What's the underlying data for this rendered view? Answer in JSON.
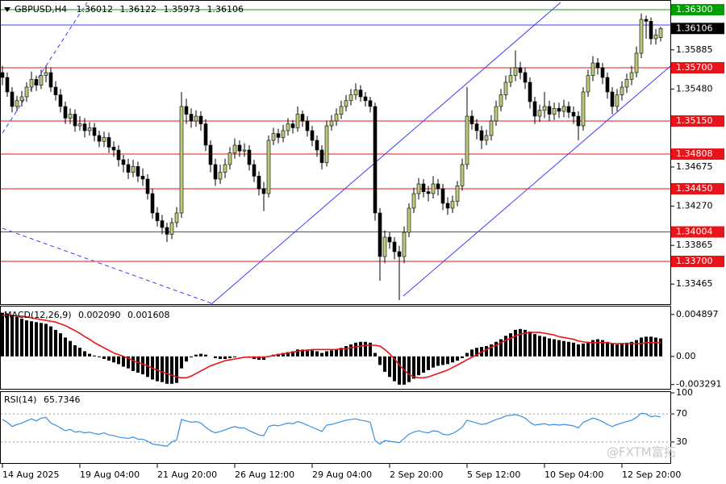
{
  "chart_data": [
    {
      "type": "candlestick",
      "title": "GBPUSD,H4",
      "header_values": [
        1.36012,
        1.36122,
        1.35973,
        1.36106
      ],
      "categories": [
        "14 Aug 2025",
        null,
        null,
        null,
        null,
        null,
        null,
        null,
        null,
        null,
        null,
        null,
        null,
        null,
        null,
        null,
        "19 Aug 04:00",
        null,
        null,
        null,
        null,
        null,
        null,
        null,
        null,
        null,
        null,
        null,
        null,
        null,
        null,
        null,
        "21 Aug 20:00",
        null,
        null,
        null,
        null,
        null,
        null,
        null,
        null,
        null,
        null,
        null,
        null,
        null,
        null,
        null,
        "26 Aug 12:00",
        null,
        null,
        null,
        null,
        null,
        null,
        null,
        null,
        null,
        null,
        null,
        null,
        null,
        null,
        null,
        "29 Aug 04:00",
        null,
        null,
        null,
        null,
        null,
        null,
        null,
        null,
        null,
        null,
        null,
        null,
        null,
        null,
        null,
        "2 Sep 20:00",
        null,
        null,
        null,
        null,
        null,
        null,
        null,
        null,
        null,
        null,
        null,
        null,
        null,
        null,
        null,
        "5 Sep 12:00",
        null,
        null,
        null,
        null,
        null,
        null,
        null,
        null,
        null,
        null,
        null,
        null,
        null,
        null,
        null,
        "10 Sep 04:00",
        null,
        null,
        null,
        null,
        null,
        null,
        null,
        null,
        null,
        null,
        null,
        null,
        null,
        null,
        null,
        "12 Sep 20:00",
        null,
        null,
        null,
        null,
        null,
        null,
        null,
        null
      ],
      "open": [
        1.3565,
        1.356,
        1.3545,
        1.353,
        1.3536,
        1.354,
        1.355,
        1.3558,
        1.3552,
        1.3562,
        1.3565,
        1.355,
        1.3542,
        1.353,
        1.3518,
        1.3522,
        1.351,
        1.3512,
        1.3505,
        1.3508,
        1.35,
        1.3494,
        1.3498,
        1.3488,
        1.3485,
        1.3475,
        1.347,
        1.3462,
        1.3468,
        1.3458,
        1.3455,
        1.344,
        1.342,
        1.3412,
        1.3405,
        1.3398,
        1.341,
        1.342,
        1.353,
        1.3522,
        1.3515,
        1.352,
        1.3512,
        1.349,
        1.347,
        1.3455,
        1.3462,
        1.347,
        1.3482,
        1.349,
        1.3484,
        1.3485,
        1.347,
        1.3458,
        1.3445,
        1.344,
        1.3495,
        1.3502,
        1.3498,
        1.3505,
        1.3512,
        1.3508,
        1.3522,
        1.3515,
        1.3505,
        1.3495,
        1.3485,
        1.3472,
        1.351,
        1.3515,
        1.3522,
        1.353,
        1.3536,
        1.3542,
        1.3547,
        1.354,
        1.3536,
        1.353,
        1.342,
        1.3375,
        1.3395,
        1.339,
        1.338,
        1.3375,
        1.34,
        1.3425,
        1.344,
        1.345,
        1.3442,
        1.344,
        1.345,
        1.3445,
        1.343,
        1.3425,
        1.3432,
        1.3448,
        1.347,
        1.352,
        1.3512,
        1.3505,
        1.3495,
        1.35,
        1.3515,
        1.353,
        1.3542,
        1.3555,
        1.3562,
        1.357,
        1.3565,
        1.3555,
        1.3535,
        1.352,
        1.3526,
        1.353,
        1.3522,
        1.3528,
        1.3525,
        1.353,
        1.3524,
        1.352,
        1.351,
        1.3545,
        1.3562,
        1.3575,
        1.357,
        1.356,
        1.3545,
        1.353,
        1.3542,
        1.355,
        1.3558,
        1.3565,
        1.3585,
        1.362,
        1.3618,
        1.36,
        1.36012
      ],
      "high": [
        1.3572,
        1.3565,
        1.355,
        1.3541,
        1.3546,
        1.3555,
        1.3566,
        1.3562,
        1.3568,
        1.3572,
        1.357,
        1.3556,
        1.3548,
        1.3535,
        1.3528,
        1.3527,
        1.352,
        1.3518,
        1.3514,
        1.3513,
        1.3505,
        1.3504,
        1.3503,
        1.3494,
        1.349,
        1.348,
        1.3476,
        1.3475,
        1.3473,
        1.3466,
        1.346,
        1.3445,
        1.3426,
        1.3418,
        1.341,
        1.3415,
        1.3426,
        1.3545,
        1.3538,
        1.3528,
        1.3526,
        1.3525,
        1.3517,
        1.3495,
        1.3476,
        1.347,
        1.3476,
        1.3488,
        1.3497,
        1.3495,
        1.3492,
        1.349,
        1.3475,
        1.3463,
        1.3452,
        1.35,
        1.3508,
        1.3507,
        1.3511,
        1.3518,
        1.3516,
        1.353,
        1.3526,
        1.352,
        1.351,
        1.35,
        1.349,
        1.3515,
        1.3521,
        1.3528,
        1.3536,
        1.3542,
        1.3548,
        1.3554,
        1.3552,
        1.3545,
        1.354,
        1.3534,
        1.3425,
        1.3402,
        1.34,
        1.3395,
        1.3386,
        1.3406,
        1.343,
        1.3446,
        1.3456,
        1.3455,
        1.3448,
        1.3458,
        1.3455,
        1.345,
        1.3436,
        1.3438,
        1.3453,
        1.3476,
        1.355,
        1.3526,
        1.3517,
        1.351,
        1.3506,
        1.3521,
        1.3536,
        1.3548,
        1.3562,
        1.357,
        1.3588,
        1.3576,
        1.357,
        1.356,
        1.354,
        1.3532,
        1.3545,
        1.3536,
        1.3534,
        1.3534,
        1.3537,
        1.3535,
        1.353,
        1.3525,
        1.355,
        1.3568,
        1.3582,
        1.358,
        1.3575,
        1.3565,
        1.355,
        1.3548,
        1.3556,
        1.3564,
        1.3572,
        1.3592,
        1.3626,
        1.3624,
        1.3622,
        1.361,
        1.36122
      ],
      "low": [
        1.3552,
        1.354,
        1.3524,
        1.3525,
        1.353,
        1.3535,
        1.3545,
        1.3546,
        1.3548,
        1.3555,
        1.3545,
        1.3536,
        1.3524,
        1.3512,
        1.3512,
        1.3504,
        1.3505,
        1.3498,
        1.35,
        1.3494,
        1.3488,
        1.3488,
        1.3482,
        1.3478,
        1.3468,
        1.3462,
        1.3455,
        1.3457,
        1.3452,
        1.3448,
        1.3434,
        1.3414,
        1.3406,
        1.3398,
        1.339,
        1.3393,
        1.3405,
        1.3415,
        1.3512,
        1.3508,
        1.3509,
        1.3505,
        1.3484,
        1.3462,
        1.3448,
        1.345,
        1.3456,
        1.3465,
        1.3476,
        1.3478,
        1.3478,
        1.3464,
        1.3452,
        1.3438,
        1.3422,
        1.3436,
        1.349,
        1.3492,
        1.3493,
        1.35,
        1.3502,
        1.3504,
        1.3509,
        1.3499,
        1.3489,
        1.3478,
        1.3465,
        1.3468,
        1.3505,
        1.351,
        1.3517,
        1.3525,
        1.3531,
        1.3537,
        1.3535,
        1.353,
        1.3524,
        1.3412,
        1.335,
        1.3368,
        1.3383,
        1.3372,
        1.333,
        1.3368,
        1.3395,
        1.342,
        1.3434,
        1.3436,
        1.3432,
        1.3435,
        1.3438,
        1.3423,
        1.3418,
        1.342,
        1.3427,
        1.3443,
        1.3465,
        1.3506,
        1.3496,
        1.3486,
        1.349,
        1.3495,
        1.351,
        1.3525,
        1.3537,
        1.355,
        1.3556,
        1.3558,
        1.3548,
        1.3528,
        1.3512,
        1.3514,
        1.3518,
        1.3515,
        1.3516,
        1.3518,
        1.3519,
        1.3518,
        1.3512,
        1.3495,
        1.3505,
        1.354,
        1.3556,
        1.3563,
        1.3553,
        1.3538,
        1.3522,
        1.3525,
        1.3536,
        1.3544,
        1.3552,
        1.356,
        1.358,
        1.36,
        1.3594,
        1.3594,
        1.35973
      ],
      "close": [
        1.356,
        1.3545,
        1.353,
        1.3536,
        1.354,
        1.355,
        1.3558,
        1.3552,
        1.3562,
        1.3565,
        1.355,
        1.3542,
        1.353,
        1.3518,
        1.3522,
        1.351,
        1.3512,
        1.3505,
        1.3508,
        1.35,
        1.3494,
        1.3498,
        1.3488,
        1.3485,
        1.3475,
        1.347,
        1.3462,
        1.3468,
        1.3458,
        1.3455,
        1.344,
        1.342,
        1.3412,
        1.3405,
        1.3398,
        1.341,
        1.342,
        1.353,
        1.3522,
        1.3515,
        1.352,
        1.3512,
        1.349,
        1.347,
        1.3455,
        1.3462,
        1.347,
        1.3482,
        1.349,
        1.3484,
        1.3485,
        1.347,
        1.3458,
        1.3445,
        1.344,
        1.3495,
        1.3502,
        1.3498,
        1.3505,
        1.3512,
        1.3508,
        1.3522,
        1.3515,
        1.3505,
        1.3495,
        1.3485,
        1.3472,
        1.351,
        1.3515,
        1.3522,
        1.353,
        1.3536,
        1.3542,
        1.3547,
        1.354,
        1.3536,
        1.353,
        1.342,
        1.3375,
        1.3395,
        1.339,
        1.338,
        1.3375,
        1.34,
        1.3425,
        1.344,
        1.345,
        1.3442,
        1.344,
        1.345,
        1.3445,
        1.343,
        1.3425,
        1.3432,
        1.3448,
        1.347,
        1.352,
        1.3512,
        1.3505,
        1.3495,
        1.35,
        1.3515,
        1.353,
        1.3542,
        1.3555,
        1.3562,
        1.357,
        1.3565,
        1.3555,
        1.3535,
        1.352,
        1.3526,
        1.353,
        1.3522,
        1.3528,
        1.3525,
        1.353,
        1.3524,
        1.352,
        1.351,
        1.3545,
        1.3562,
        1.3575,
        1.357,
        1.356,
        1.3545,
        1.353,
        1.3542,
        1.355,
        1.3558,
        1.3565,
        1.3585,
        1.362,
        1.3618,
        1.36,
        1.3604,
        1.36106
      ],
      "up_color": "#b8cc7a",
      "down_color": "#000000",
      "ylim": [
        1.3325,
        1.364
      ],
      "yticks": [
        1.35885,
        {
          "value": 1.3548,
          "label": "1.35480"
        },
        1.34675,
        {
          "value": 1.3427,
          "label": "1.34270"
        },
        1.33865,
        1.33465
      ],
      "levels": [
        {
          "value": 1.363,
          "label": "1.36300",
          "color": "#00a000"
        },
        {
          "value": 1.357,
          "label": "1.35700",
          "color": "#e8141a"
        },
        {
          "value": 1.3515,
          "label": "1.35150",
          "color": "#e8141a"
        },
        {
          "value": 1.34808,
          "color": "#e8141a"
        },
        {
          "value": 1.3445,
          "label": "1.34450",
          "color": "#e8141a"
        },
        {
          "value": 1.34004,
          "color": "#e8141a"
        },
        {
          "value": 1.337,
          "label": "1.33700",
          "color": "#e8141a"
        }
      ],
      "last": 1.36106
    },
    {
      "type": "macd",
      "title": "MACD(12,26,9)",
      "header_values": [
        {
          "value": 0.00209,
          "label": "0.002090"
        },
        0.001608
      ],
      "histogram": [
        0.0051,
        0.005,
        0.0048,
        0.0046,
        0.0044,
        0.0042,
        0.0041,
        0.004,
        0.0039,
        0.0038,
        0.0035,
        0.0031,
        0.0027,
        0.0022,
        0.0018,
        0.0013,
        0.001,
        0.0006,
        0.0003,
        0.0001,
        -0.0001,
        -0.0003,
        -0.0005,
        -0.0007,
        -0.0009,
        -0.0012,
        -0.0014,
        -0.0017,
        -0.0019,
        -0.0021,
        -0.0024,
        -0.0027,
        -0.0029,
        -0.003,
        -0.0032,
        -0.0032,
        -0.0031,
        -0.0014,
        -0.0006,
        -0.0001,
        0.0002,
        0.0003,
        0.0002,
        0.0,
        -0.0002,
        -0.0003,
        -0.0003,
        -0.0002,
        -0.0001,
        0.0,
        0.0,
        -0.0001,
        -0.0003,
        -0.0004,
        -0.0004,
        0.0,
        0.0002,
        0.0003,
        0.0004,
        0.0005,
        0.0006,
        0.0008,
        0.0008,
        0.0008,
        0.0007,
        0.0006,
        0.0004,
        0.0006,
        0.0007,
        0.0008,
        0.001,
        0.0012,
        0.0014,
        0.0016,
        0.0017,
        0.0017,
        0.0016,
        0.0004,
        -0.001,
        -0.0018,
        -0.0024,
        -0.0029,
        -0.0033,
        -0.0033,
        -0.003,
        -0.0026,
        -0.0022,
        -0.0019,
        -0.0016,
        -0.0013,
        -0.0011,
        -0.001,
        -0.0009,
        -0.0007,
        -0.0005,
        -0.0002,
        0.0004,
        0.0008,
        0.001,
        0.0011,
        0.0012,
        0.0014,
        0.0017,
        0.002,
        0.0024,
        0.0027,
        0.0031,
        0.0032,
        0.0031,
        0.0029,
        0.0026,
        0.0024,
        0.0023,
        0.0021,
        0.002,
        0.0019,
        0.0018,
        0.0017,
        0.0016,
        0.0014,
        0.0015,
        0.0017,
        0.0019,
        0.002,
        0.0019,
        0.0017,
        0.0015,
        0.0014,
        0.0015,
        0.0016,
        0.0017,
        0.0019,
        0.0022,
        0.0023,
        0.0023,
        0.0022,
        0.00209
      ],
      "signal": [
        0.0048,
        0.0048,
        0.0048,
        0.0047,
        0.0047,
        0.0046,
        0.0045,
        0.0044,
        0.0043,
        0.0042,
        0.0041,
        0.004,
        0.0038,
        0.0036,
        0.0033,
        0.003,
        0.0027,
        0.0023,
        0.002,
        0.0016,
        0.0013,
        0.001,
        0.0007,
        0.0004,
        0.0002,
        0.0,
        -0.0002,
        -0.0005,
        -0.0007,
        -0.0009,
        -0.0011,
        -0.0014,
        -0.0016,
        -0.0018,
        -0.002,
        -0.0022,
        -0.0024,
        -0.0025,
        -0.0025,
        -0.0023,
        -0.002,
        -0.0017,
        -0.0014,
        -0.0011,
        -0.0009,
        -0.0007,
        -0.0005,
        -0.0004,
        -0.0003,
        -0.0002,
        -0.0001,
        -0.0001,
        -0.0001,
        -0.0001,
        -0.0001,
        0.0,
        0.0001,
        0.0002,
        0.0003,
        0.0004,
        0.0005,
        0.0006,
        0.0007,
        0.0007,
        0.0008,
        0.0008,
        0.0008,
        0.0008,
        0.0008,
        0.0008,
        0.0009,
        0.0009,
        0.001,
        0.0011,
        0.0012,
        0.0013,
        0.0013,
        0.0013,
        0.0012,
        0.0008,
        0.0003,
        -0.0003,
        -0.001,
        -0.0016,
        -0.0021,
        -0.0024,
        -0.0025,
        -0.0025,
        -0.0024,
        -0.0022,
        -0.002,
        -0.0018,
        -0.0016,
        -0.0013,
        -0.001,
        -0.0007,
        -0.0004,
        -0.0001,
        0.0002,
        0.0005,
        0.0008,
        0.0011,
        0.0013,
        0.0016,
        0.0019,
        0.0021,
        0.0024,
        0.0026,
        0.0027,
        0.0028,
        0.0028,
        0.0028,
        0.0027,
        0.0026,
        0.0025,
        0.0023,
        0.0022,
        0.0021,
        0.002,
        0.0018,
        0.0017,
        0.0016,
        0.0016,
        0.0016,
        0.0016,
        0.0016,
        0.0015,
        0.0015,
        0.0015,
        0.0015,
        0.0015,
        0.0015,
        0.0015,
        0.0016,
        0.0016,
        0.0016,
        0.001608
      ],
      "bar_color": "#000000",
      "signal_color": "#e8141a",
      "ylim": [
        -0.00388,
        0.00582
      ],
      "yticks": [
        0.004897,
        {
          "value": 0,
          "label": "0.00"
        },
        -0.003291
      ]
    },
    {
      "type": "line",
      "title": "RSI(14)",
      "header_values": [
        65.7346
      ],
      "values": [
        62,
        58,
        52,
        55,
        57,
        60,
        63,
        60,
        64,
        65,
        57,
        54,
        50,
        46,
        48,
        44,
        45,
        43,
        44,
        42,
        41,
        43,
        40,
        39,
        37,
        36,
        35,
        37,
        34,
        34,
        31,
        27,
        26,
        25,
        24,
        30,
        33,
        62,
        60,
        58,
        59,
        57,
        51,
        46,
        43,
        45,
        47,
        50,
        52,
        50,
        50,
        46,
        43,
        40,
        39,
        52,
        54,
        53,
        55,
        57,
        56,
        59,
        57,
        54,
        51,
        48,
        45,
        54,
        55,
        57,
        59,
        61,
        62,
        63,
        61,
        60,
        58,
        32,
        27,
        32,
        31,
        30,
        29,
        35,
        41,
        44,
        46,
        44,
        43,
        46,
        45,
        41,
        40,
        42,
        46,
        51,
        61,
        59,
        57,
        55,
        56,
        59,
        62,
        64,
        67,
        68,
        69,
        67,
        64,
        58,
        54,
        55,
        56,
        54,
        55,
        54,
        55,
        54,
        53,
        50,
        58,
        61,
        64,
        62,
        59,
        55,
        52,
        55,
        57,
        59,
        61,
        65,
        71,
        70,
        66,
        67,
        65.7346
      ],
      "color": "#3a8fe0",
      "ylim": [
        0,
        100
      ],
      "yticks": [
        100,
        70,
        30
      ],
      "levels": [
        70,
        30
      ]
    }
  ],
  "watermark": "@FXTM富拓"
}
